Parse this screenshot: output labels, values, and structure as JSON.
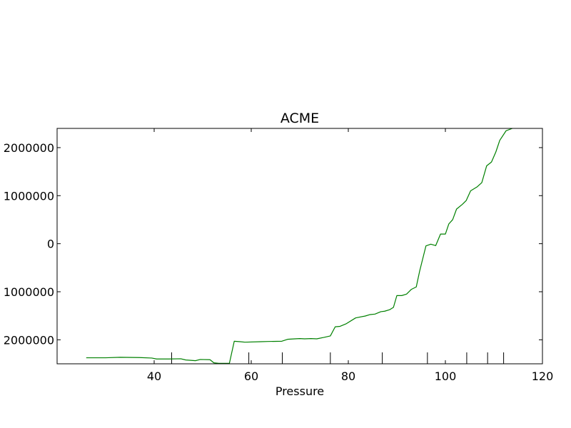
{
  "chart_data": {
    "type": "line",
    "title": "ACME",
    "xlabel": "Pressure",
    "ylabel": "",
    "xlim": [
      20,
      120
    ],
    "ylim": [
      -2500000,
      2400000
    ],
    "grid": false,
    "x_ticks": [
      {
        "value": 40,
        "label": "40"
      },
      {
        "value": 60,
        "label": "60"
      },
      {
        "value": 80,
        "label": "80"
      },
      {
        "value": 100,
        "label": "100"
      },
      {
        "value": 120,
        "label": "120"
      }
    ],
    "y_ticks": [
      {
        "value": 2000000,
        "label": "2000000"
      },
      {
        "value": 1000000,
        "label": "1000000"
      },
      {
        "value": 0,
        "label": "0"
      },
      {
        "value": -1000000,
        "label": "1000000"
      },
      {
        "value": -2000000,
        "label": "2000000"
      }
    ],
    "event_markers": [
      43.6,
      59.5,
      66.4,
      76.3,
      87.0,
      96.3,
      104.4,
      108.7,
      112.0
    ],
    "series": [
      {
        "name": "ACME",
        "color": "#008000",
        "x": [
          26,
          30,
          33,
          37,
          39.5,
          40.5,
          43,
          45.5,
          46.5,
          48.5,
          49.5,
          51.5,
          52.3,
          53.3,
          55.5,
          56.5,
          57.7,
          58.7,
          62,
          63.5,
          66.3,
          67.5,
          69,
          70,
          71,
          72.3,
          73.5,
          75,
          76.3,
          77.3,
          78.3,
          79.5,
          81.5,
          83.5,
          84.5,
          85.5,
          86.7,
          87.5,
          88.5,
          89.3,
          90,
          91,
          92,
          93,
          94,
          94.7,
          96,
          97,
          98,
          99,
          100,
          100.7,
          101.5,
          102.3,
          103.5,
          104.3,
          105.2,
          106.5,
          107.5,
          108.5,
          109.5,
          110.4,
          111.2,
          112.5,
          113.8
        ],
        "y": [
          -2375000,
          -2375000,
          -2365000,
          -2370000,
          -2380000,
          -2400000,
          -2400000,
          -2395000,
          -2420000,
          -2435000,
          -2410000,
          -2415000,
          -2480000,
          -2490000,
          -2490000,
          -2030000,
          -2040000,
          -2050000,
          -2040000,
          -2035000,
          -2030000,
          -1990000,
          -1980000,
          -1975000,
          -1980000,
          -1975000,
          -1980000,
          -1950000,
          -1920000,
          -1730000,
          -1720000,
          -1670000,
          -1545000,
          -1505000,
          -1475000,
          -1465000,
          -1415000,
          -1405000,
          -1375000,
          -1325000,
          -1080000,
          -1080000,
          -1050000,
          -950000,
          -900000,
          -570000,
          -45000,
          -10000,
          -40000,
          200000,
          200000,
          410000,
          500000,
          720000,
          820000,
          900000,
          1100000,
          1180000,
          1270000,
          1620000,
          1700000,
          1910000,
          2150000,
          2350000,
          2400000
        ]
      }
    ]
  }
}
